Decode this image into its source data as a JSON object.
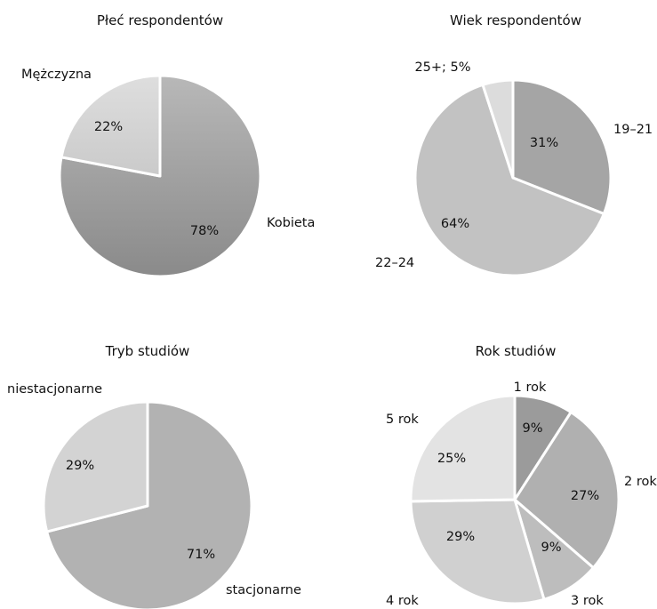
{
  "chart_data": [
    {
      "type": "pie",
      "title": "Płeć respondentów",
      "slices": [
        {
          "name": "Kobieta",
          "value": 78,
          "pct_label": "78%",
          "color": "#a2a2a2"
        },
        {
          "name": "Mężczyzna",
          "value": 22,
          "pct_label": "22%",
          "color": "#d3d3d3"
        }
      ],
      "start": "12 o'clock",
      "direction": "clockwise",
      "fill": "gradient"
    },
    {
      "type": "pie",
      "title": "Wiek respondentów",
      "slices": [
        {
          "name": "19–21",
          "value": 31,
          "pct_label": "31%",
          "color": "#a5a5a5"
        },
        {
          "name": "22–24",
          "value": 64,
          "pct_label": "64%",
          "color": "#c2c2c2"
        },
        {
          "name": "25+",
          "value": 5,
          "pct_label": "25+; 5%",
          "color": "#dcdcdc"
        }
      ],
      "start": "12 o'clock",
      "direction": "clockwise"
    },
    {
      "type": "pie",
      "title": "Tryb studiów",
      "slices": [
        {
          "name": "stacjonarne",
          "value": 71,
          "pct_label": "71%",
          "color": "#b2b2b2"
        },
        {
          "name": "niestacjonarne",
          "value": 29,
          "pct_label": "29%",
          "color": "#d3d3d3"
        }
      ],
      "start": "12 o'clock",
      "direction": "clockwise"
    },
    {
      "type": "pie",
      "title": "Rok studiów",
      "slices": [
        {
          "name": "1 rok",
          "value": 9,
          "pct_label": "9%",
          "color": "#9b9b9b"
        },
        {
          "name": "2 rok",
          "value": 27,
          "pct_label": "27%",
          "color": "#b0b0b0"
        },
        {
          "name": "3 rok",
          "value": 9,
          "pct_label": "9%",
          "color": "#bdbdbd"
        },
        {
          "name": "4 rok",
          "value": 29,
          "pct_label": "29%",
          "color": "#d0d0d0"
        },
        {
          "name": "5 rok",
          "value": 25,
          "pct_label": "25%",
          "color": "#e3e3e3"
        }
      ],
      "start": "12 o'clock",
      "direction": "clockwise"
    }
  ]
}
